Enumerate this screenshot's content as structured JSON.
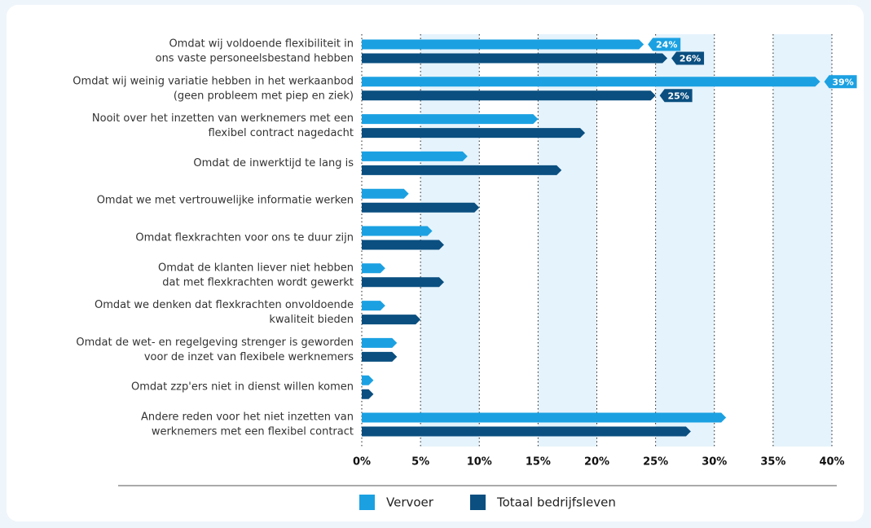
{
  "chart_data": {
    "type": "bar",
    "orientation": "horizontal",
    "categories": [
      [
        "Omdat wij voldoende flexibiliteit in",
        "ons vaste personeelsbestand hebben"
      ],
      [
        "Omdat wij weinig variatie hebben in het werkaanbod",
        "(geen probleem met piep en ziek)"
      ],
      [
        "Nooit over het inzetten van werknemers met een",
        "flexibel contract nagedacht"
      ],
      [
        "Omdat de inwerktijd te lang is"
      ],
      [
        "Omdat we met vertrouwelijke informatie werken"
      ],
      [
        "Omdat flexkrachten voor ons te duur zijn"
      ],
      [
        "Omdat de klanten liever niet hebben",
        "dat met flexkrachten wordt gewerkt"
      ],
      [
        "Omdat we denken dat flexkrachten onvoldoende",
        "kwaliteit bieden"
      ],
      [
        "Omdat de wet- en regelgeving strenger is geworden",
        "voor de inzet van flexibele werknemers"
      ],
      [
        "Omdat zzp'ers niet in dienst willen komen"
      ],
      [
        "Andere reden voor het niet inzetten van",
        "werknemers met een flexibel contract"
      ]
    ],
    "series": [
      {
        "name": "Vervoer",
        "color": "#1ba1e2",
        "values": [
          24,
          39,
          15,
          9,
          4,
          6,
          2,
          2,
          3,
          1,
          31
        ],
        "value_labels": [
          "24%",
          "39%",
          null,
          null,
          null,
          null,
          null,
          null,
          null,
          null,
          null
        ]
      },
      {
        "name": "Totaal bedrijfsleven",
        "color": "#0a4f80",
        "values": [
          26,
          25,
          19,
          17,
          10,
          7,
          7,
          5,
          3,
          1,
          28
        ],
        "value_labels": [
          "26%",
          "25%",
          null,
          null,
          null,
          null,
          null,
          null,
          null,
          null,
          null
        ]
      }
    ],
    "xlim": [
      0,
      40
    ],
    "xticks": [
      {
        "value": 0,
        "label": "0%"
      },
      {
        "value": 5,
        "label": "5%"
      },
      {
        "value": 10,
        "label": "10%"
      },
      {
        "value": 15,
        "label": "15%"
      },
      {
        "value": 20,
        "label": "20%"
      },
      {
        "value": 25,
        "label": "25%"
      },
      {
        "value": 30,
        "label": "30%"
      },
      {
        "value": 35,
        "label": "35%"
      },
      {
        "value": 40,
        "label": "40%"
      }
    ],
    "grid": true,
    "legend": "bottom"
  }
}
